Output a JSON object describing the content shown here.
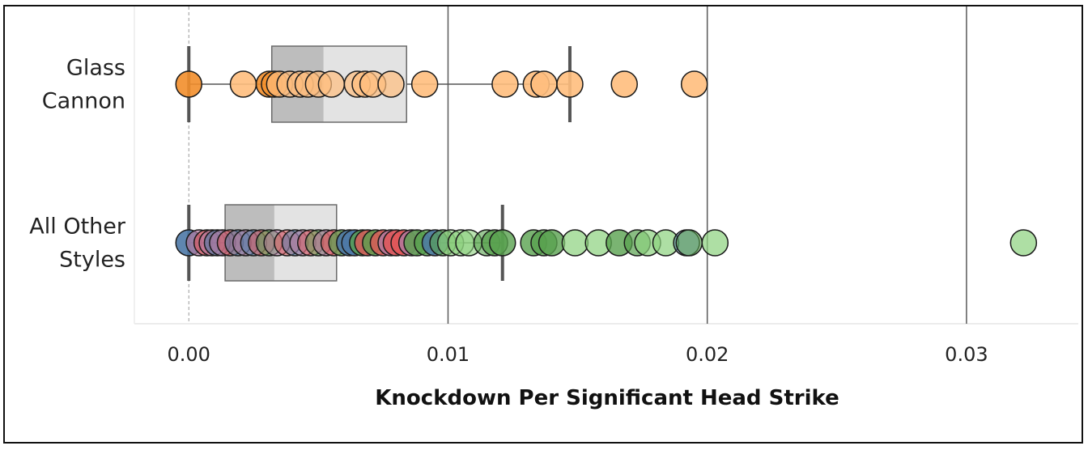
{
  "chart_data": {
    "type": "box-strip",
    "xlabel": "Knockdown Per Significant Head Strike",
    "xlim": [
      -0.0021,
      0.0345
    ],
    "xticks": [
      {
        "value": 0.0,
        "label": "0.00"
      },
      {
        "value": 0.01,
        "label": "0.01"
      },
      {
        "value": 0.02,
        "label": "0.02"
      },
      {
        "value": 0.03,
        "label": "0.03"
      }
    ],
    "categories": [
      {
        "label_lines": [
          "Glass",
          "Cannon"
        ],
        "box": {
          "whisker_low": 0.0,
          "q1": 0.0032,
          "median": 0.0052,
          "q3": 0.0084,
          "whisker_high": 0.0147
        },
        "points": [
          {
            "x": 0.0,
            "color": "#f28e2b",
            "alpha": 0.9
          },
          {
            "x": 0.0021,
            "color": "#ffbe7d",
            "alpha": 0.9
          },
          {
            "x": 0.0031,
            "color": "#f28e2b",
            "alpha": 0.9
          },
          {
            "x": 0.0033,
            "color": "#f28e2b",
            "alpha": 0.7
          },
          {
            "x": 0.0035,
            "color": "#ffbe7d",
            "alpha": 0.7
          },
          {
            "x": 0.0039,
            "color": "#ffbe7d",
            "alpha": 0.7
          },
          {
            "x": 0.0043,
            "color": "#ffbe7d",
            "alpha": 0.7
          },
          {
            "x": 0.0046,
            "color": "#ffbe7d",
            "alpha": 0.7
          },
          {
            "x": 0.005,
            "color": "#ffbe7d",
            "alpha": 0.7
          },
          {
            "x": 0.0055,
            "color": "#ffbe7d",
            "alpha": 0.7
          },
          {
            "x": 0.0065,
            "color": "#ffbe7d",
            "alpha": 0.7
          },
          {
            "x": 0.0068,
            "color": "#ffbe7d",
            "alpha": 0.7
          },
          {
            "x": 0.0071,
            "color": "#ffbe7d",
            "alpha": 0.7
          },
          {
            "x": 0.0078,
            "color": "#ffbe7d",
            "alpha": 0.7
          },
          {
            "x": 0.0091,
            "color": "#ffbe7d",
            "alpha": 0.9
          },
          {
            "x": 0.0122,
            "color": "#ffbe7d",
            "alpha": 0.9
          },
          {
            "x": 0.0134,
            "color": "#ffbe7d",
            "alpha": 0.9
          },
          {
            "x": 0.0137,
            "color": "#ffbe7d",
            "alpha": 0.9
          },
          {
            "x": 0.0147,
            "color": "#ffbe7d",
            "alpha": 0.9
          },
          {
            "x": 0.0168,
            "color": "#ffbe7d",
            "alpha": 0.9
          },
          {
            "x": 0.0195,
            "color": "#ffbe7d",
            "alpha": 0.9
          }
        ]
      },
      {
        "label_lines": [
          "All Other",
          "Styles"
        ],
        "box": {
          "whisker_low": 0.0,
          "q1": 0.0014,
          "median": 0.0033,
          "q3": 0.0057,
          "whisker_high": 0.0121
        },
        "points": [
          {
            "x": 0.0,
            "color": "#4e79a7",
            "alpha": 0.9
          },
          {
            "x": 0.0004,
            "color": "#b07aa1",
            "alpha": 0.7
          },
          {
            "x": 0.0007,
            "color": "#e15759",
            "alpha": 0.6
          },
          {
            "x": 0.0009,
            "color": "#b07aa1",
            "alpha": 0.6
          },
          {
            "x": 0.0011,
            "color": "#4e79a7",
            "alpha": 0.6
          },
          {
            "x": 0.0013,
            "color": "#b07aa1",
            "alpha": 0.6
          },
          {
            "x": 0.0016,
            "color": "#e15759",
            "alpha": 0.5
          },
          {
            "x": 0.0019,
            "color": "#4e79a7",
            "alpha": 0.5
          },
          {
            "x": 0.0022,
            "color": "#b07aa1",
            "alpha": 0.5
          },
          {
            "x": 0.0025,
            "color": "#4e79a7",
            "alpha": 0.5
          },
          {
            "x": 0.0028,
            "color": "#e15759",
            "alpha": 0.5
          },
          {
            "x": 0.0031,
            "color": "#59a14f",
            "alpha": 0.5
          },
          {
            "x": 0.0034,
            "color": "#b07aa1",
            "alpha": 0.5
          },
          {
            "x": 0.0038,
            "color": "#e15759",
            "alpha": 0.5
          },
          {
            "x": 0.0041,
            "color": "#4e79a7",
            "alpha": 0.5
          },
          {
            "x": 0.0044,
            "color": "#b07aa1",
            "alpha": 0.5
          },
          {
            "x": 0.0047,
            "color": "#e15759",
            "alpha": 0.5
          },
          {
            "x": 0.005,
            "color": "#59a14f",
            "alpha": 0.5
          },
          {
            "x": 0.0053,
            "color": "#b07aa1",
            "alpha": 0.6
          },
          {
            "x": 0.0056,
            "color": "#e15759",
            "alpha": 0.6
          },
          {
            "x": 0.0059,
            "color": "#59a14f",
            "alpha": 0.7
          },
          {
            "x": 0.0062,
            "color": "#4e79a7",
            "alpha": 0.9
          },
          {
            "x": 0.0064,
            "color": "#4e79a7",
            "alpha": 0.9
          },
          {
            "x": 0.0067,
            "color": "#59a14f",
            "alpha": 0.8
          },
          {
            "x": 0.0069,
            "color": "#e15759",
            "alpha": 0.8
          },
          {
            "x": 0.0072,
            "color": "#59a14f",
            "alpha": 0.8
          },
          {
            "x": 0.0075,
            "color": "#e15759",
            "alpha": 0.8
          },
          {
            "x": 0.0078,
            "color": "#b07aa1",
            "alpha": 0.8
          },
          {
            "x": 0.008,
            "color": "#e15759",
            "alpha": 0.85
          },
          {
            "x": 0.0083,
            "color": "#e15759",
            "alpha": 0.85
          },
          {
            "x": 0.0086,
            "color": "#b07aa1",
            "alpha": 0.8
          },
          {
            "x": 0.0088,
            "color": "#59a14f",
            "alpha": 0.8
          },
          {
            "x": 0.0092,
            "color": "#59a14f",
            "alpha": 0.8
          },
          {
            "x": 0.0095,
            "color": "#4e79a7",
            "alpha": 0.85
          },
          {
            "x": 0.0098,
            "color": "#59a14f",
            "alpha": 0.6
          },
          {
            "x": 0.0101,
            "color": "#8cd17d",
            "alpha": 0.6
          },
          {
            "x": 0.0105,
            "color": "#8cd17d",
            "alpha": 0.6
          },
          {
            "x": 0.0108,
            "color": "#8cd17d",
            "alpha": 0.6
          },
          {
            "x": 0.0115,
            "color": "#59a14f",
            "alpha": 0.6
          },
          {
            "x": 0.0118,
            "color": "#59a14f",
            "alpha": 0.8
          },
          {
            "x": 0.0121,
            "color": "#59a14f",
            "alpha": 0.8
          },
          {
            "x": 0.0133,
            "color": "#59a14f",
            "alpha": 0.8
          },
          {
            "x": 0.0137,
            "color": "#59a14f",
            "alpha": 0.8
          },
          {
            "x": 0.014,
            "color": "#59a14f",
            "alpha": 0.8
          },
          {
            "x": 0.0149,
            "color": "#8cd17d",
            "alpha": 0.7
          },
          {
            "x": 0.0158,
            "color": "#8cd17d",
            "alpha": 0.7
          },
          {
            "x": 0.0166,
            "color": "#59a14f",
            "alpha": 0.8
          },
          {
            "x": 0.0173,
            "color": "#59a14f",
            "alpha": 0.7
          },
          {
            "x": 0.0177,
            "color": "#8cd17d",
            "alpha": 0.7
          },
          {
            "x": 0.0184,
            "color": "#8cd17d",
            "alpha": 0.7
          },
          {
            "x": 0.0192,
            "color": "#4e79a7",
            "alpha": 0.5
          },
          {
            "x": 0.0193,
            "color": "#59a14f",
            "alpha": 0.6
          },
          {
            "x": 0.0203,
            "color": "#8cd17d",
            "alpha": 0.7
          },
          {
            "x": 0.0322,
            "color": "#8cd17d",
            "alpha": 0.7
          }
        ]
      }
    ],
    "grid": {
      "vertical": true,
      "horizontal": false,
      "zero_line": "dashed"
    },
    "legend": "none"
  }
}
